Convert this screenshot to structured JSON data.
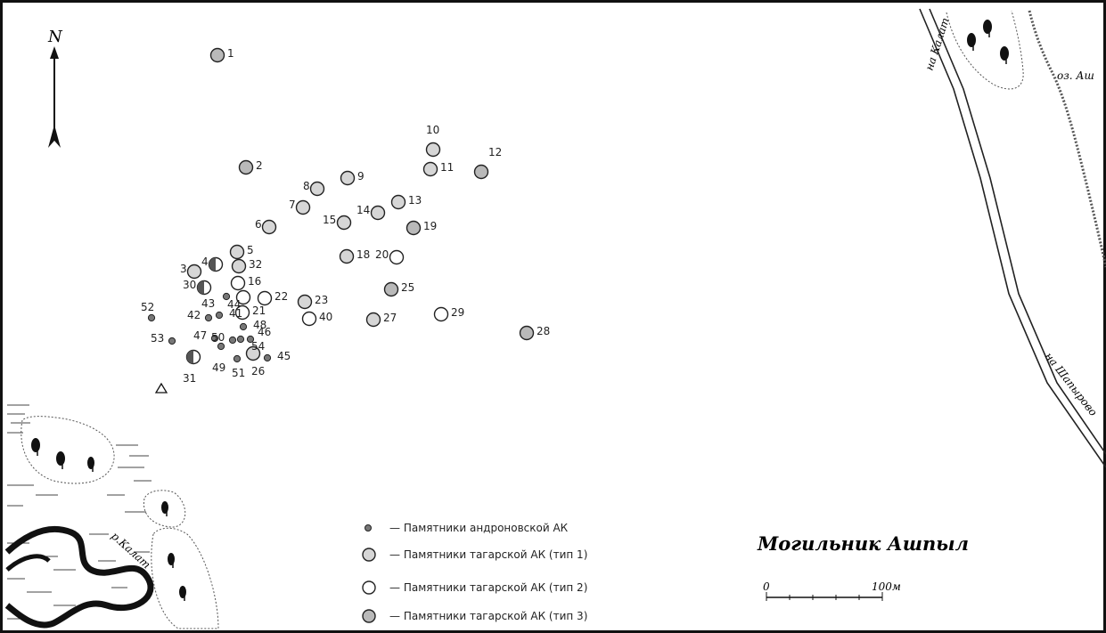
{
  "map": {
    "title": "Могильник Ашпыл",
    "north_label": "N",
    "scale": {
      "start_label": "0",
      "end_label": "100м"
    },
    "place_labels": {
      "road_kalat": "на Калат",
      "road_shaparovo": "на Шапырово",
      "lake": "оз. Аш",
      "river": "р.Калат"
    },
    "legend": [
      {
        "type": "andronovo",
        "label": "— Памятники андроновской АК"
      },
      {
        "type": "tagar1",
        "label": "— Памятники тагарской АК (тип 1)"
      },
      {
        "type": "tagar2",
        "label": "— Памятники тагарской АК (тип 2)"
      },
      {
        "type": "tagar3",
        "label": "— Памятники тагарской АК (тип 3)"
      }
    ],
    "colors": {
      "andronovo": "#777777",
      "tagar1": "#d6d6d6",
      "tagar2": "#ffffff",
      "tagar3": "#b9b9b9",
      "stroke": "#222222"
    },
    "monuments": [
      {
        "id": "1",
        "type": "tagar3"
      },
      {
        "id": "2",
        "type": "tagar3"
      },
      {
        "id": "3",
        "type": "tagar1"
      },
      {
        "id": "4",
        "type": "half"
      },
      {
        "id": "5",
        "type": "tagar1"
      },
      {
        "id": "6",
        "type": "tagar1"
      },
      {
        "id": "7",
        "type": "tagar1"
      },
      {
        "id": "8",
        "type": "tagar1"
      },
      {
        "id": "9",
        "type": "tagar1"
      },
      {
        "id": "10",
        "type": "tagar1"
      },
      {
        "id": "11",
        "type": "tagar1"
      },
      {
        "id": "12",
        "type": "tagar3"
      },
      {
        "id": "13",
        "type": "tagar1"
      },
      {
        "id": "14",
        "type": "tagar1"
      },
      {
        "id": "15",
        "type": "tagar1"
      },
      {
        "id": "16",
        "type": "tagar2"
      },
      {
        "id": "18",
        "type": "tagar1"
      },
      {
        "id": "19",
        "type": "tagar3"
      },
      {
        "id": "20",
        "type": "tagar2"
      },
      {
        "id": "21",
        "type": "tagar2"
      },
      {
        "id": "22",
        "type": "tagar2"
      },
      {
        "id": "23",
        "type": "tagar1"
      },
      {
        "id": "25",
        "type": "tagar3"
      },
      {
        "id": "26",
        "type": "tagar1"
      },
      {
        "id": "27",
        "type": "tagar1"
      },
      {
        "id": "28",
        "type": "tagar3"
      },
      {
        "id": "29",
        "type": "tagar2"
      },
      {
        "id": "30",
        "type": "half"
      },
      {
        "id": "31",
        "type": "half"
      },
      {
        "id": "32",
        "type": "tagar1"
      },
      {
        "id": "40",
        "type": "tagar2"
      },
      {
        "id": "41",
        "type": "andronovo"
      },
      {
        "id": "42",
        "type": "andronovo"
      },
      {
        "id": "43",
        "type": "andronovo"
      },
      {
        "id": "44",
        "type": "tagar2"
      },
      {
        "id": "45",
        "type": "andronovo"
      },
      {
        "id": "46",
        "type": "andronovo"
      },
      {
        "id": "47",
        "type": "andronovo"
      },
      {
        "id": "48",
        "type": "andronovo"
      },
      {
        "id": "49",
        "type": "andronovo"
      },
      {
        "id": "50",
        "type": "andronovo"
      },
      {
        "id": "51",
        "type": "andronovo"
      },
      {
        "id": "52",
        "type": "andronovo"
      },
      {
        "id": "53",
        "type": "andronovo"
      },
      {
        "id": "54",
        "type": "andronovo"
      }
    ]
  }
}
